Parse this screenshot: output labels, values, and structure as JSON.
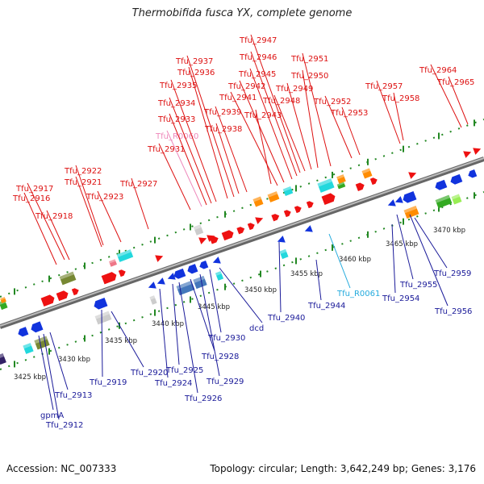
{
  "title": "Thermobifida fusca YX, complete genome",
  "footer": {
    "accession": "Accession: NC_007333",
    "topology": "Topology: circular; Length: 3,642,249 bp; Genes: 3,176"
  },
  "colors": {
    "forward_cds": "#ee1111",
    "reverse_cds": "#1133dd",
    "forward_label": "#dd1111",
    "reverse_label": "#1a1a99",
    "rna_forward_label": "#ee88bb",
    "rna_reverse_label": "#22aadd",
    "backbone": "#888888",
    "tick": "#228822",
    "orange": "#ff8c00",
    "cyan": "#22d8dd",
    "green": "#33aa22",
    "olive": "#778833",
    "gray": "#cccccc",
    "steel": "#4477bb"
  },
  "kbp_labels": [
    "3425 kbp",
    "3430 kbp",
    "3435 kbp",
    "3440 kbp",
    "3445 kbp",
    "3450 kbp",
    "3455 kbp",
    "3460 kbp",
    "3465 kbp",
    "3470 kbp"
  ],
  "forward_labels": [
    "Tfu_2916",
    "Tfu_2917",
    "Tfu_2918",
    "Tfu_2921",
    "Tfu_2922",
    "Tfu_2923",
    "Tfu_2927",
    "Tfu_2931",
    "Tfu_R0060",
    "Tfu_2933",
    "Tfu_2934",
    "Tfu_2935",
    "Tfu_2936",
    "Tfu_2937",
    "Tfu_2938",
    "Tfu_2939",
    "Tfu_2941",
    "Tfu_2942",
    "Tfu_2943",
    "Tfu_2945",
    "Tfu_2946",
    "Tfu_2947",
    "Tfu_2948",
    "Tfu_2949",
    "Tfu_2950",
    "Tfu_2951",
    "Tfu_2952",
    "Tfu_2953",
    "Tfu_2957",
    "Tfu_2958",
    "Tfu_2964",
    "Tfu_2965"
  ],
  "reverse_labels": [
    "gpmA",
    "Tfu_2912",
    "Tfu_2913",
    "Tfu_2919",
    "Tfu_2920",
    "Tfu_2924",
    "Tfu_2925",
    "Tfu_2926",
    "Tfu_2928",
    "Tfu_2929",
    "Tfu_2930",
    "dcd",
    "Tfu_2940",
    "Tfu_2944",
    "Tfu_R0061",
    "Tfu_2954",
    "Tfu_2955",
    "Tfu_2956",
    "Tfu_2959"
  ]
}
